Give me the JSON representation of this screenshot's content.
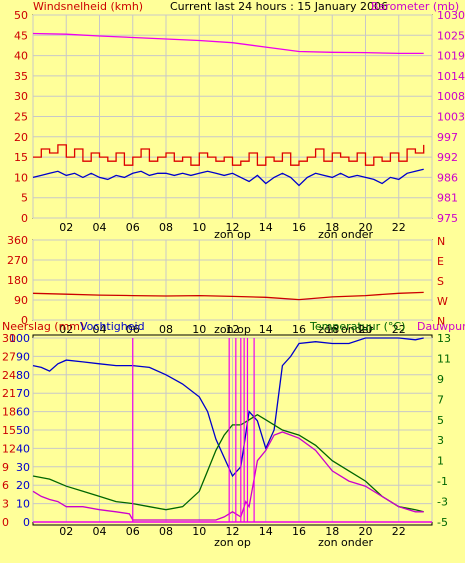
{
  "colors": {
    "background": "#ffff99",
    "plot_bg": "#ffff99",
    "grid": "#c8c8c8",
    "axis_text": "#000000",
    "wind_label": "#cc0000",
    "baro_label": "#cc00cc",
    "wind_avg": "#0000cc",
    "wind_gust": "#dd0000",
    "barometer": "#ee00ee",
    "direction": "#cc0000",
    "rain": "#ee00ee",
    "humidity": "#0000cc",
    "temperature": "#006600",
    "dewpoint": "#cc00cc",
    "temp_label": "#006600",
    "dew_label": "#cc00cc",
    "humidity_label": "#0000cc",
    "rain_label": "#cc0000"
  },
  "header": {
    "title": "Current last 24 hours : 15 January 2006"
  },
  "chart_data": [
    {
      "id": "wind-baro",
      "type": "line",
      "ylabel_left": "Windsnelheid (kmh)",
      "ylabel_right": "Barometer (mb)",
      "left_ticks": [
        "0",
        "5",
        "10",
        "15",
        "20",
        "25",
        "30",
        "35",
        "40",
        "45",
        "50"
      ],
      "right_ticks": [
        "975",
        "981",
        "986",
        "992",
        "997",
        "1003",
        "1008",
        "1014",
        "1019",
        "1025",
        "1030"
      ],
      "x_ticks": [
        "02",
        "04",
        "06",
        "08",
        "10",
        "12",
        "14",
        "16",
        "18",
        "20",
        "22"
      ],
      "x_annotations": [
        "zon op",
        "zon onder"
      ],
      "ylim_left": [
        0,
        50
      ],
      "ylim_right": [
        975,
        1030
      ],
      "xlim": [
        0,
        24
      ],
      "series": [
        {
          "name": "Windsnelheid (kmh)",
          "axis": "left",
          "key": "wind_gust",
          "x": [
            0,
            0.5,
            1,
            1.5,
            2,
            2.5,
            3,
            3.5,
            4,
            4.5,
            5,
            5.5,
            6,
            6.5,
            7,
            7.5,
            8,
            8.5,
            9,
            9.5,
            10,
            10.5,
            11,
            11.5,
            12,
            12.5,
            13,
            13.5,
            14,
            14.5,
            15,
            15.5,
            16,
            16.5,
            17,
            17.5,
            18,
            18.5,
            19,
            19.5,
            20,
            20.5,
            21,
            21.5,
            22,
            22.5,
            23,
            23.5
          ],
          "y": [
            15,
            17,
            16,
            18,
            15,
            17,
            14,
            16,
            15,
            14,
            16,
            13,
            15,
            17,
            14,
            15,
            16,
            14,
            15,
            13,
            16,
            15,
            14,
            15,
            13,
            14,
            16,
            13,
            15,
            14,
            16,
            13,
            14,
            15,
            17,
            14,
            16,
            15,
            14,
            16,
            13,
            15,
            14,
            16,
            14,
            17,
            16,
            18
          ]
        },
        {
          "name": "",
          "axis": "left",
          "key": "wind_avg",
          "x": [
            0,
            0.5,
            1,
            1.5,
            2,
            2.5,
            3,
            3.5,
            4,
            4.5,
            5,
            5.5,
            6,
            6.5,
            7,
            7.5,
            8,
            8.5,
            9,
            9.5,
            10,
            10.5,
            11,
            11.5,
            12,
            12.5,
            13,
            13.5,
            14,
            14.5,
            15,
            15.5,
            16,
            16.5,
            17,
            17.5,
            18,
            18.5,
            19,
            19.5,
            20,
            20.5,
            21,
            21.5,
            22,
            22.5,
            23,
            23.5
          ],
          "y": [
            10,
            10.5,
            11,
            11.5,
            10.5,
            11,
            10,
            11,
            10,
            9.5,
            10.5,
            10,
            11,
            11.5,
            10.5,
            11,
            11,
            10.5,
            11,
            10.5,
            11,
            11.5,
            11,
            10.5,
            11,
            10,
            9,
            10.5,
            8.5,
            10,
            11,
            10,
            8,
            10,
            11,
            10.5,
            10,
            11,
            10,
            10.5,
            10,
            9.5,
            8.5,
            10,
            9.5,
            11,
            11.5,
            12
          ]
        },
        {
          "name": "Barometer (mb)",
          "axis": "right",
          "key": "barometer",
          "x": [
            0,
            2,
            4,
            6,
            8,
            10,
            12,
            14,
            16,
            18,
            20,
            22,
            23.5
          ],
          "y": [
            1025,
            1024.8,
            1024.3,
            1023.9,
            1023.5,
            1023.1,
            1022.5,
            1021.3,
            1020.1,
            1019.9,
            1019.8,
            1019.6,
            1019.6
          ]
        }
      ]
    },
    {
      "id": "direction",
      "type": "line",
      "left_ticks": [
        "0",
        "90",
        "180",
        "270",
        "360"
      ],
      "right_ticks": [
        "N",
        "W",
        "S",
        "E",
        "N"
      ],
      "x_ticks": [
        "02",
        "04",
        "06",
        "08",
        "10",
        "12",
        "14",
        "16",
        "18",
        "20",
        "22"
      ],
      "x_annotations": [
        "zon op",
        "zon onder"
      ],
      "ylim": [
        0,
        360
      ],
      "xlim": [
        0,
        24
      ],
      "series": [
        {
          "name": "",
          "key": "direction",
          "x": [
            0,
            2,
            4,
            6,
            8,
            10,
            12,
            14,
            16,
            18,
            20,
            22,
            23.5
          ],
          "y": [
            120,
            116,
            112,
            110,
            108,
            110,
            106,
            102,
            92,
            104,
            110,
            120,
            124
          ]
        }
      ]
    },
    {
      "id": "rain-hum-temp",
      "type": "line",
      "ylabel_left": "Neerslag (mm)",
      "ylabel_left2": "Vochtigheid",
      "ylabel_right": "Temperatuur (°C)",
      "ylabel_right2": "Dauwpunt",
      "left_ticks": [
        "0",
        "10",
        "20",
        "30",
        "40",
        "50",
        "60",
        "70",
        "80",
        "90",
        "100"
      ],
      "left2_ticks": [
        "0",
        "3",
        "6",
        "9",
        "12",
        "15",
        "18",
        "21",
        "24",
        "27",
        "30"
      ],
      "right_ticks": [
        "-5",
        "-3",
        "-1",
        "1",
        "3",
        "5",
        "7",
        "9",
        "11",
        "13"
      ],
      "x_ticks": [
        "02",
        "04",
        "06",
        "08",
        "10",
        "12",
        "14",
        "16",
        "18",
        "20",
        "22"
      ],
      "x_annotations": [
        "zon op",
        "zon onder"
      ],
      "ylim_left": [
        0,
        100
      ],
      "ylim_right": [
        -5,
        13
      ],
      "xlim": [
        0,
        24
      ],
      "series": [
        {
          "name": "Vochtigheid",
          "axis": "left",
          "key": "humidity",
          "x": [
            0,
            0.5,
            1,
            1.5,
            2,
            3,
            4,
            5,
            6,
            7,
            8,
            9,
            10,
            10.5,
            11,
            11.5,
            12,
            12.5,
            13,
            13.5,
            14,
            14.5,
            15,
            15.5,
            16,
            17,
            18,
            19,
            20,
            21,
            22,
            23,
            23.5
          ],
          "y": [
            85,
            84,
            82,
            86,
            88,
            87,
            86,
            85,
            85,
            84,
            80,
            75,
            68,
            60,
            45,
            35,
            25,
            30,
            60,
            55,
            40,
            50,
            85,
            90,
            97,
            98,
            97,
            97,
            100,
            100,
            100,
            99,
            100
          ]
        },
        {
          "name": "Temperatuur (°C)",
          "axis": "right",
          "key": "temperature",
          "x": [
            0,
            1,
            2,
            3,
            4,
            5,
            6,
            7,
            8,
            9,
            10,
            10.5,
            11,
            11.5,
            12,
            12.5,
            13,
            13.5,
            14,
            15,
            16,
            17,
            18,
            19,
            20,
            21,
            22,
            23,
            23.5
          ],
          "y": [
            -0.5,
            -0.8,
            -1.5,
            -2,
            -2.5,
            -3,
            -3.2,
            -3.5,
            -3.8,
            -3.5,
            -2,
            0,
            2,
            3.5,
            4.5,
            4.5,
            5,
            5.5,
            5,
            4,
            3.5,
            2.5,
            1,
            0,
            -1,
            -2.5,
            -3.5,
            -3.8,
            -4
          ]
        },
        {
          "name": "Dauwpunt",
          "axis": "right",
          "key": "dewpoint",
          "x": [
            0,
            0.5,
            1,
            1.5,
            2,
            3,
            4,
            5,
            5.8,
            6,
            7,
            8,
            9,
            10,
            11,
            11.5,
            12,
            12.5,
            12.8,
            13,
            13.5,
            14,
            14.5,
            15,
            16,
            17,
            18,
            19,
            20,
            21,
            22,
            23,
            23.5
          ],
          "y": [
            -2,
            -2.5,
            -2.8,
            -3,
            -3.5,
            -3.5,
            -3.8,
            -4,
            -4.2,
            -4.8,
            -4.8,
            -4.8,
            -4.8,
            -4.8,
            -4.8,
            -4.5,
            -4,
            -4.5,
            -3,
            -3.5,
            1,
            2,
            3.5,
            3.8,
            3.2,
            2,
            0,
            -1,
            -1.5,
            -2.5,
            -3.5,
            -4,
            -4
          ]
        },
        {
          "name": "Neerslag (mm)",
          "axis": "left",
          "key": "rain",
          "spikes_x": [
            6.0,
            11.8,
            12.2,
            12.5,
            12.7,
            12.9,
            13.3
          ],
          "spikes_y": [
            100,
            100,
            100,
            100,
            100,
            100,
            100
          ]
        }
      ]
    }
  ]
}
